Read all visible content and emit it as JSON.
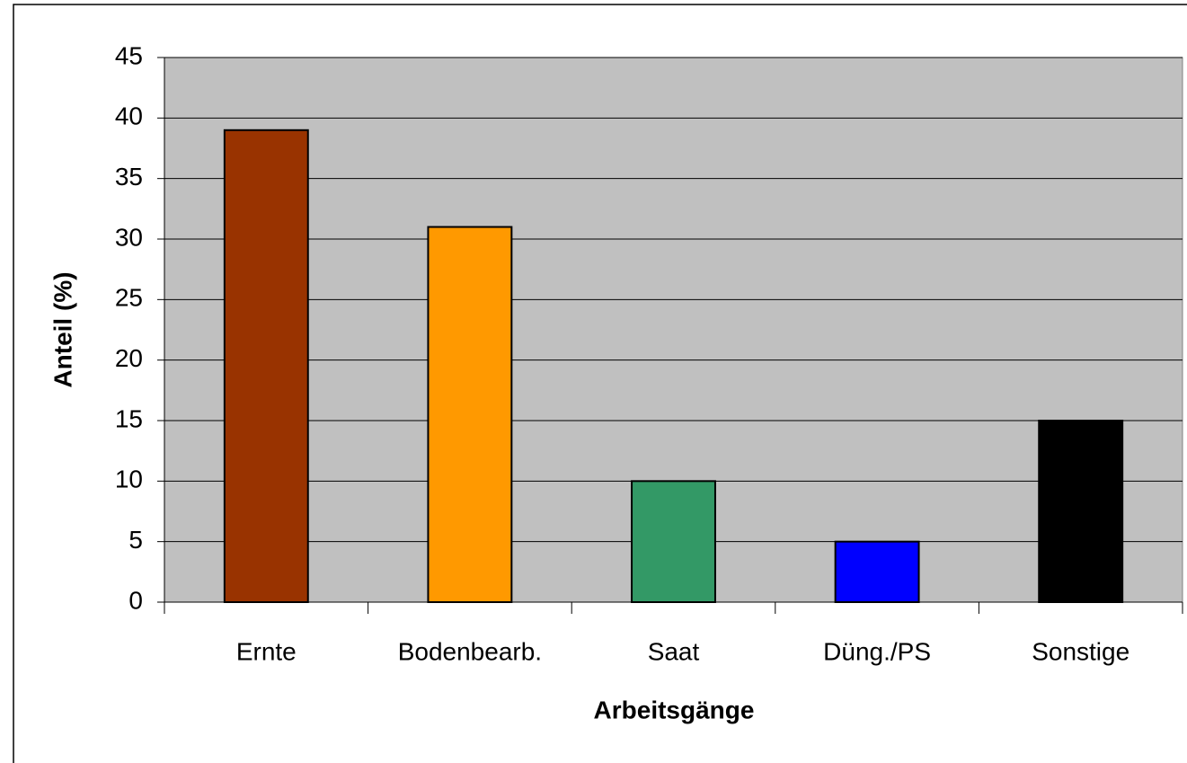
{
  "chart_data": {
    "type": "bar",
    "categories": [
      "Ernte",
      "Bodenbearb.",
      "Saat",
      "Düng./PS",
      "Sonstige"
    ],
    "values": [
      39,
      31,
      10,
      5,
      15
    ],
    "colors": [
      "#993300",
      "#ff9900",
      "#339966",
      "#0000ff",
      "#000000"
    ],
    "x_label": "Arbeitsgänge",
    "y_label": "Anteil (%)",
    "ylim": [
      0,
      45
    ],
    "yticks": [
      0,
      5,
      10,
      15,
      20,
      25,
      30,
      35,
      40,
      45
    ],
    "grid": true
  }
}
